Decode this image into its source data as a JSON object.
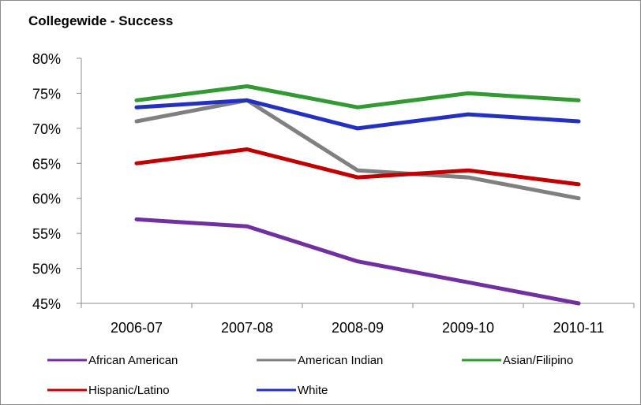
{
  "chart_data": {
    "type": "line",
    "title": "Collegewide - Success",
    "xlabel": "",
    "ylabel": "",
    "categories": [
      "2006-07",
      "2007-08",
      "2008-09",
      "2009-10",
      "2010-11"
    ],
    "y_tick_labels": [
      "80%",
      "75%",
      "70%",
      "65%",
      "60%",
      "55%",
      "50%",
      "45%"
    ],
    "ylim": [
      45,
      80
    ],
    "grid": false,
    "legend_position": "bottom",
    "series": [
      {
        "name": "African American",
        "color": "#7030a0",
        "values": [
          57,
          56,
          51,
          48,
          45
        ]
      },
      {
        "name": "American Indian",
        "color": "#808080",
        "values": [
          71,
          74,
          64,
          63,
          60
        ]
      },
      {
        "name": "Asian/Filipino",
        "color": "#339933",
        "values": [
          74,
          76,
          73,
          75,
          74
        ]
      },
      {
        "name": "Hispanic/Latino",
        "color": "#c00000",
        "values": [
          65,
          67,
          63,
          64,
          62
        ]
      },
      {
        "name": "White",
        "color": "#2431c0",
        "values": [
          73,
          74,
          70,
          72,
          71
        ]
      }
    ]
  }
}
